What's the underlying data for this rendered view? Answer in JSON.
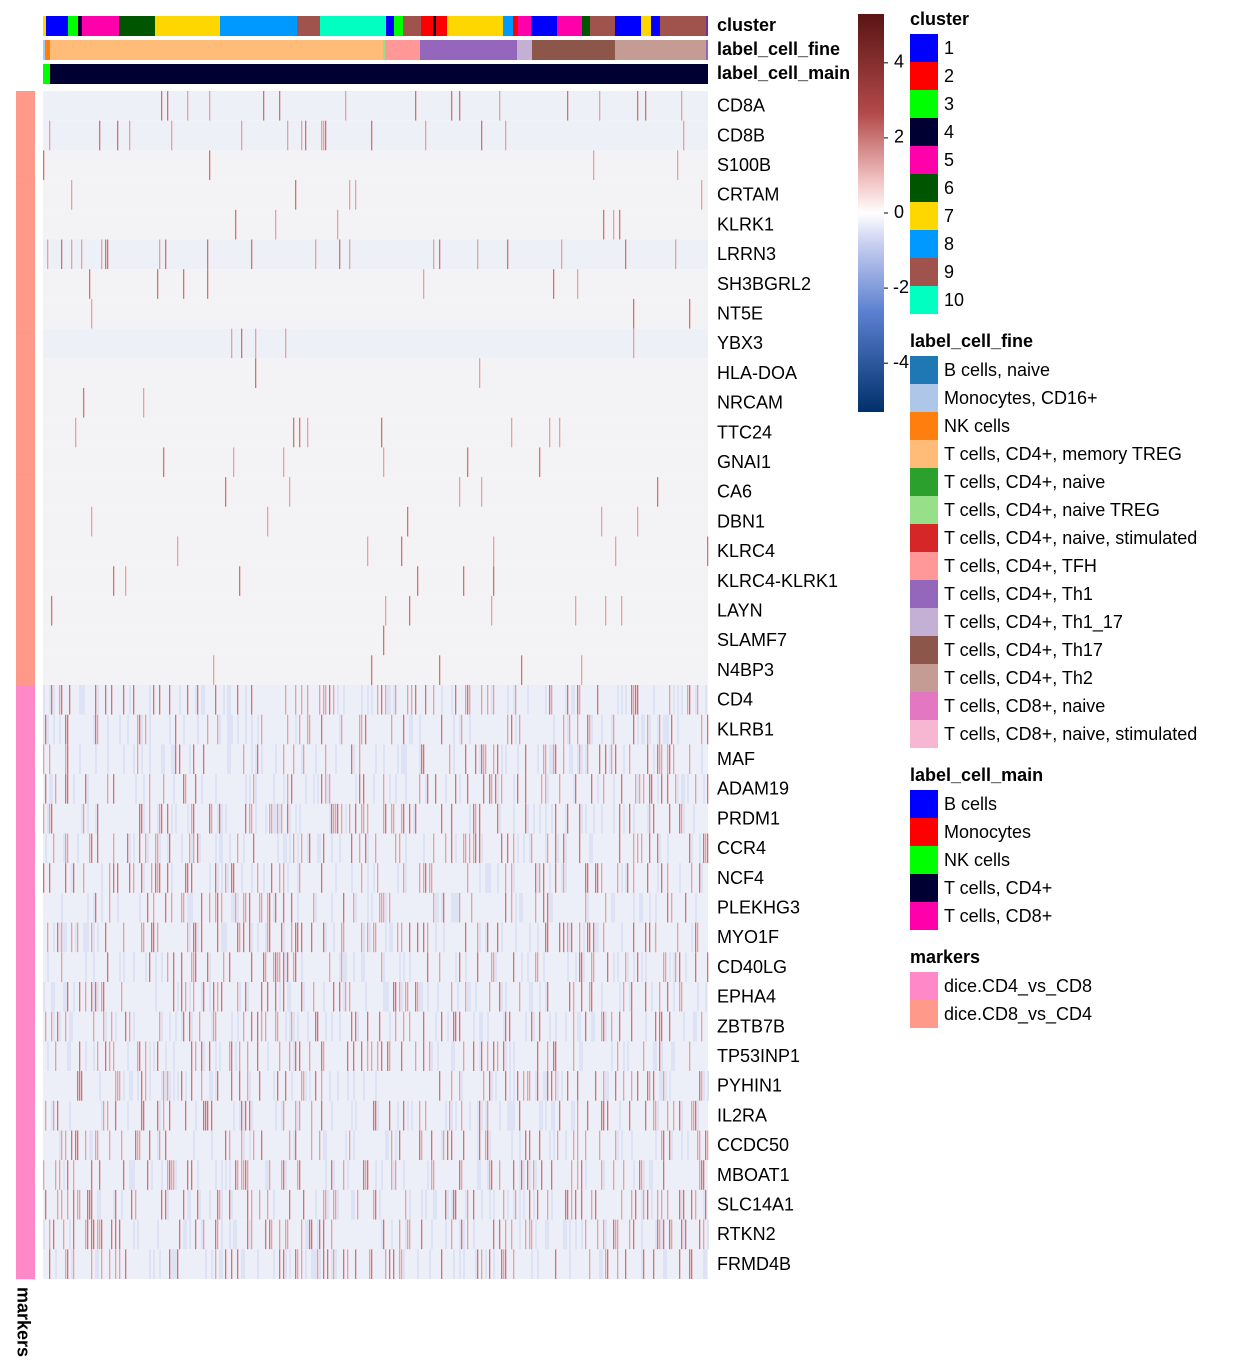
{
  "chart_data": {
    "type": "heatmap",
    "rows": [
      "CD8A",
      "CD8B",
      "S100B",
      "CRTAM",
      "KLRK1",
      "LRRN3",
      "SH3BGRL2",
      "NT5E",
      "YBX3",
      "HLA-DOA",
      "NRCAM",
      "TTC24",
      "GNAI1",
      "CA6",
      "DBN1",
      "KLRC4",
      "KLRC4-KLRK1",
      "LAYN",
      "SLAMF7",
      "N4BP3",
      "CD4",
      "KLRB1",
      "MAF",
      "ADAM19",
      "PRDM1",
      "CCR4",
      "NCF4",
      "PLEKHG3",
      "MYO1F",
      "CD40LG",
      "EPHA4",
      "ZBTB7B",
      "TP53INP1",
      "PYHIN1",
      "IL2RA",
      "CCDC50",
      "MBOAT1",
      "SLC14A1",
      "RTKN2",
      "FRMD4B"
    ],
    "row_markers": [
      "dice.CD8_vs_CD4",
      "dice.CD8_vs_CD4",
      "dice.CD8_vs_CD4",
      "dice.CD8_vs_CD4",
      "dice.CD8_vs_CD4",
      "dice.CD8_vs_CD4",
      "dice.CD8_vs_CD4",
      "dice.CD8_vs_CD4",
      "dice.CD8_vs_CD4",
      "dice.CD8_vs_CD4",
      "dice.CD8_vs_CD4",
      "dice.CD8_vs_CD4",
      "dice.CD8_vs_CD4",
      "dice.CD8_vs_CD4",
      "dice.CD8_vs_CD4",
      "dice.CD8_vs_CD4",
      "dice.CD8_vs_CD4",
      "dice.CD8_vs_CD4",
      "dice.CD8_vs_CD4",
      "dice.CD8_vs_CD4",
      "dice.CD4_vs_CD8",
      "dice.CD4_vs_CD8",
      "dice.CD4_vs_CD8",
      "dice.CD4_vs_CD8",
      "dice.CD4_vs_CD8",
      "dice.CD4_vs_CD8",
      "dice.CD4_vs_CD8",
      "dice.CD4_vs_CD8",
      "dice.CD4_vs_CD8",
      "dice.CD4_vs_CD8",
      "dice.CD4_vs_CD8",
      "dice.CD4_vs_CD8",
      "dice.CD4_vs_CD8",
      "dice.CD4_vs_CD8",
      "dice.CD4_vs_CD8",
      "dice.CD4_vs_CD8",
      "dice.CD4_vs_CD8",
      "dice.CD4_vs_CD8",
      "dice.CD4_vs_CD8",
      "dice.CD4_vs_CD8"
    ],
    "row_annotation_title": "markers",
    "column_annotations": [
      "cluster",
      "label_cell_fine",
      "label_cell_main"
    ],
    "colorbar": {
      "ylim": [
        -5.3,
        5.3
      ],
      "yticks": [
        -4,
        -2,
        0,
        2,
        4
      ]
    },
    "legends": [
      {
        "title": "cluster",
        "items": [
          {
            "label": "1",
            "color": "#0000ff"
          },
          {
            "label": "2",
            "color": "#ff0000"
          },
          {
            "label": "3",
            "color": "#00ff00"
          },
          {
            "label": "4",
            "color": "#000033"
          },
          {
            "label": "5",
            "color": "#ff00aa"
          },
          {
            "label": "6",
            "color": "#005500"
          },
          {
            "label": "7",
            "color": "#ffd700"
          },
          {
            "label": "8",
            "color": "#0099ff"
          },
          {
            "label": "9",
            "color": "#a0524d"
          },
          {
            "label": "10",
            "color": "#00ffc0"
          }
        ]
      },
      {
        "title": "label_cell_fine",
        "items": [
          {
            "label": "B cells, naive",
            "color": "#1f77b4"
          },
          {
            "label": "Monocytes, CD16+",
            "color": "#aec7e8"
          },
          {
            "label": "NK cells",
            "color": "#ff7f0e"
          },
          {
            "label": "T cells, CD4+, memory TREG",
            "color": "#ffbb78"
          },
          {
            "label": "T cells, CD4+, naive",
            "color": "#2ca02c"
          },
          {
            "label": "T cells, CD4+, naive TREG",
            "color": "#98df8a"
          },
          {
            "label": "T cells, CD4+, naive, stimulated",
            "color": "#d62728"
          },
          {
            "label": "T cells, CD4+, TFH",
            "color": "#ff9896"
          },
          {
            "label": "T cells, CD4+, Th1",
            "color": "#9467bd"
          },
          {
            "label": "T cells, CD4+, Th1_17",
            "color": "#c5b0d5"
          },
          {
            "label": "T cells, CD4+, Th17",
            "color": "#8c564b"
          },
          {
            "label": "T cells, CD4+, Th2",
            "color": "#c49c94"
          },
          {
            "label": "T cells, CD8+, naive",
            "color": "#e377c2"
          },
          {
            "label": "T cells, CD8+, naive, stimulated",
            "color": "#f7b6d2"
          }
        ]
      },
      {
        "title": "label_cell_main",
        "items": [
          {
            "label": "B cells",
            "color": "#0000ff"
          },
          {
            "label": "Monocytes",
            "color": "#ff0000"
          },
          {
            "label": "NK cells",
            "color": "#00ff00"
          },
          {
            "label": "T cells, CD4+",
            "color": "#000033"
          },
          {
            "label": "T cells, CD8+",
            "color": "#ff00aa"
          }
        ]
      },
      {
        "title": "markers",
        "items": [
          {
            "label": "dice.CD4_vs_CD8",
            "color": "#ff88c8"
          },
          {
            "label": "dice.CD8_vs_CD4",
            "color": "#ff9a8a"
          }
        ]
      }
    ]
  }
}
